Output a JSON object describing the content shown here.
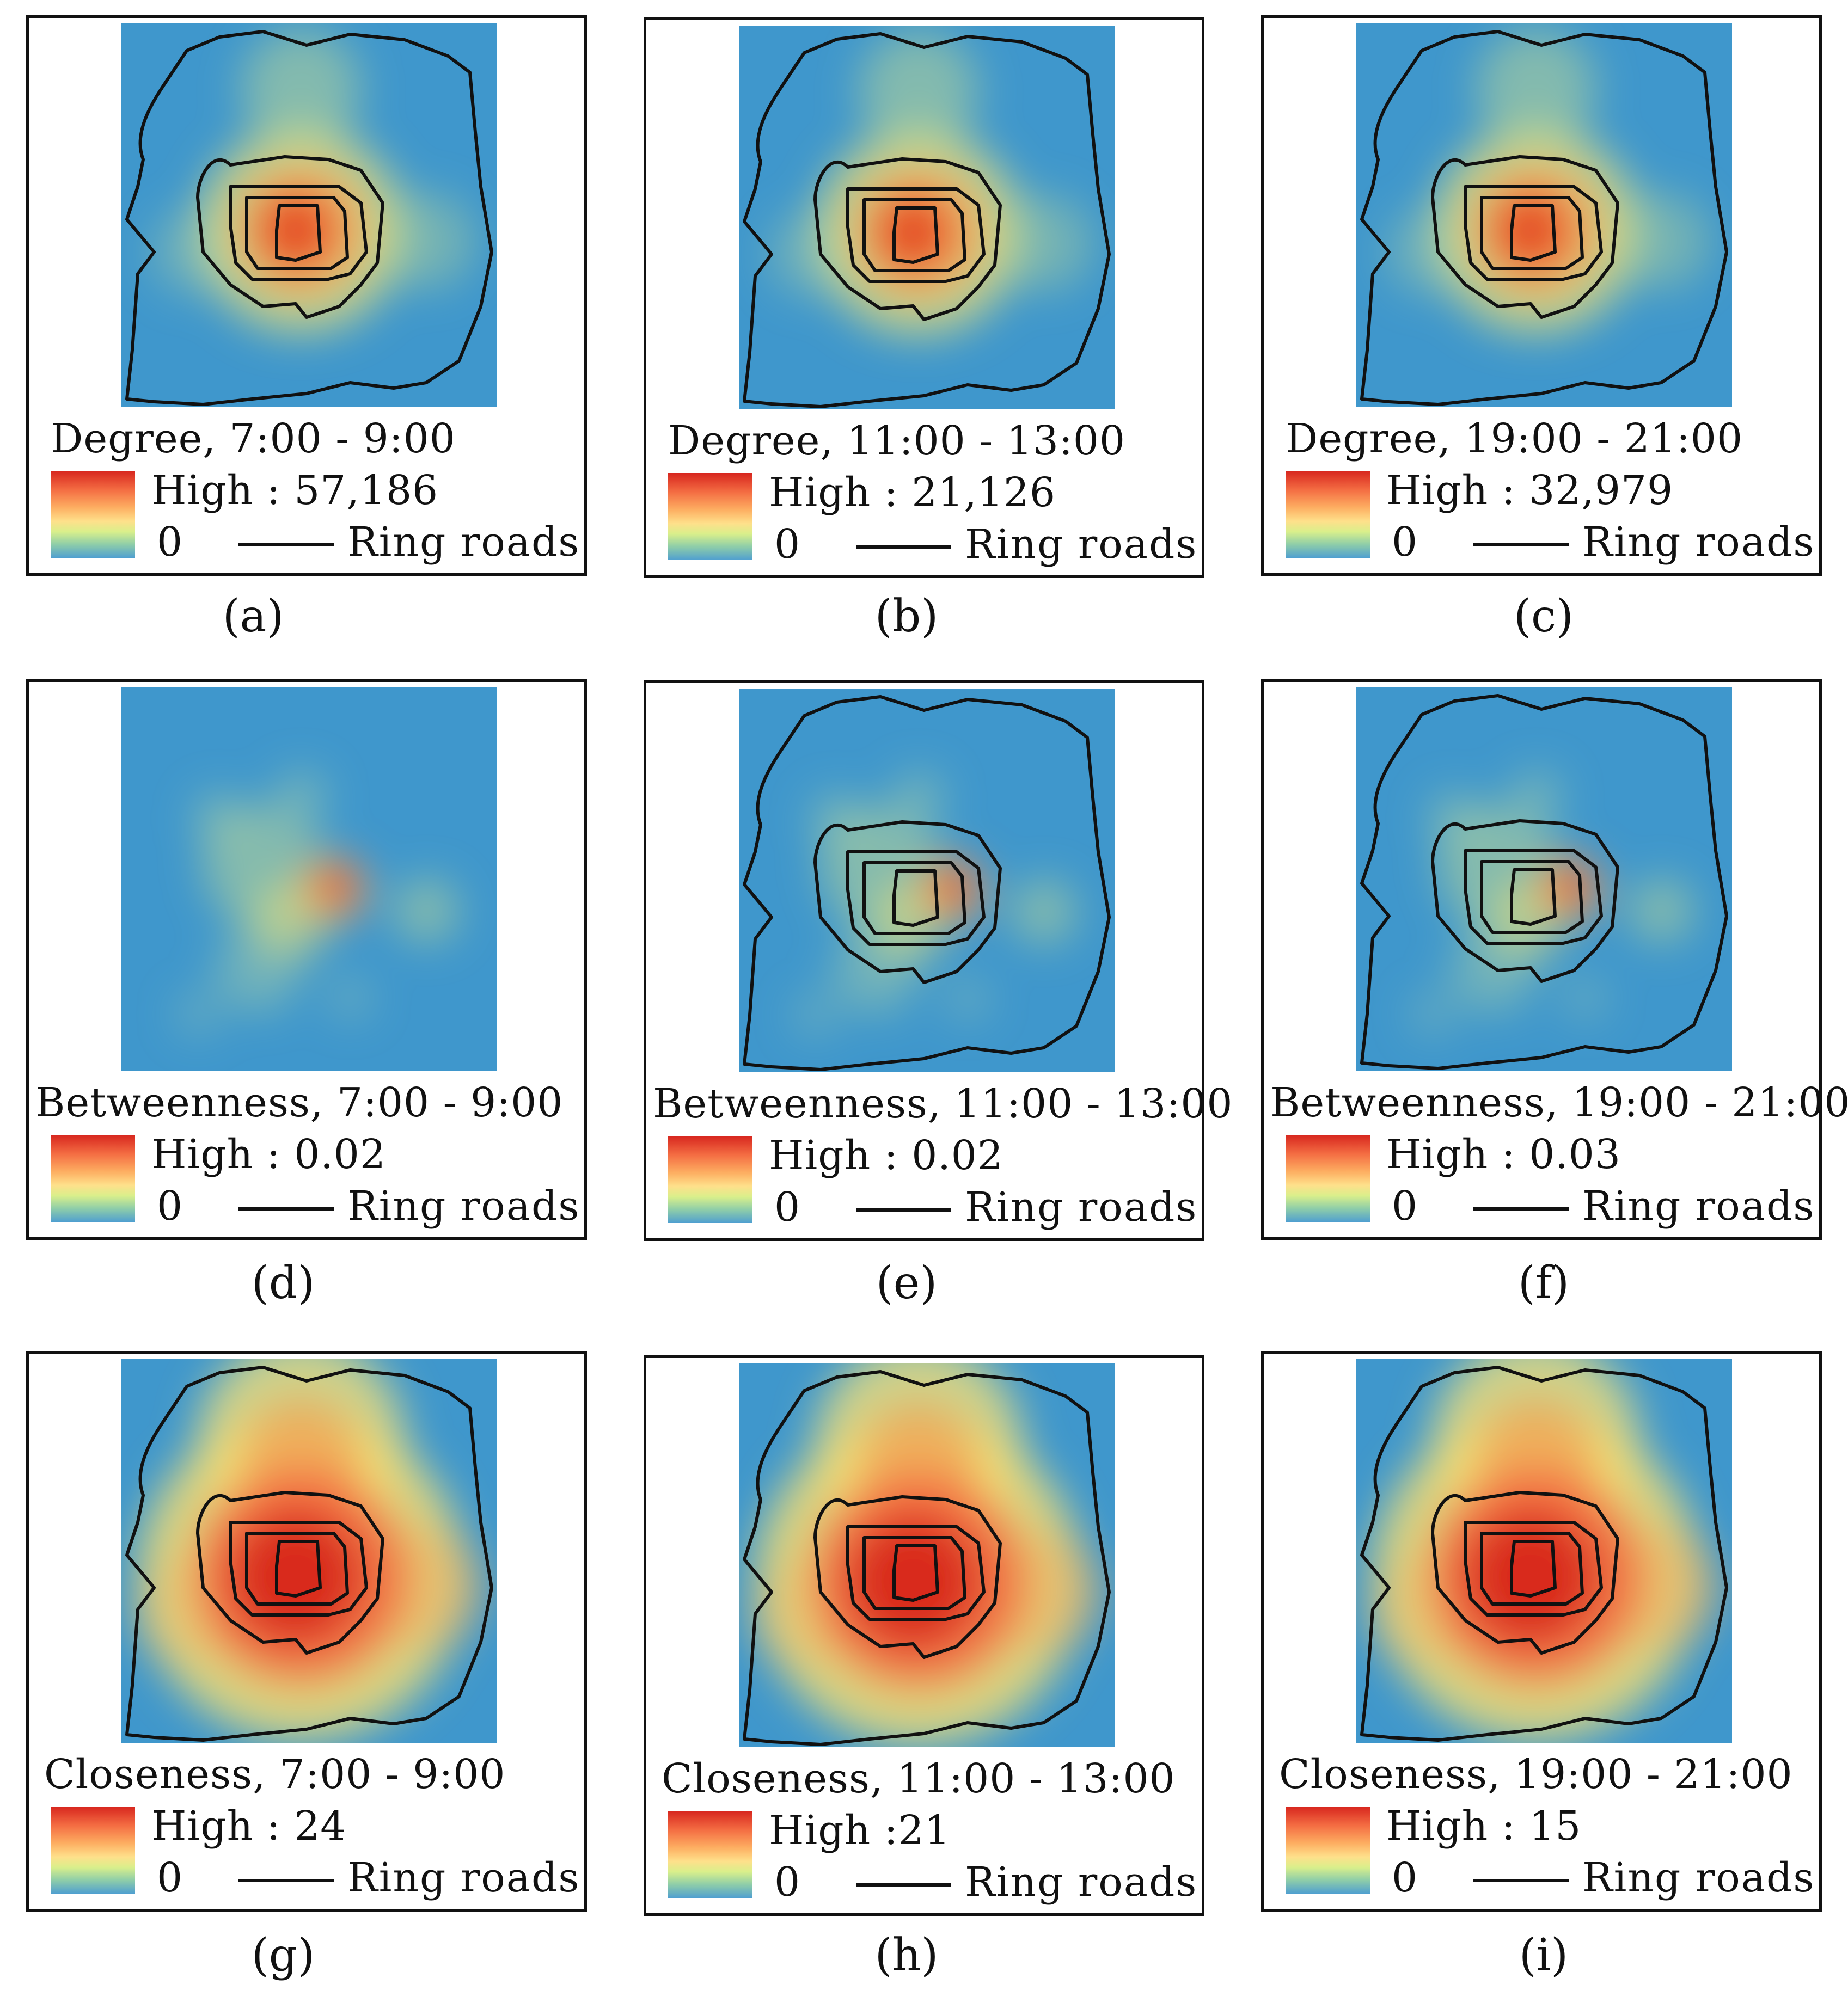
{
  "panels": [
    {
      "id": "a",
      "caption": "(a)",
      "title": "Degree, 7:00 - 9:00",
      "high_label": "High : 57,186",
      "zero_label": "0",
      "legend_line_label": "Ring roads",
      "layer": "degree",
      "show_rings": true
    },
    {
      "id": "b",
      "caption": "(b)",
      "title": "Degree, 11:00 - 13:00",
      "high_label": "High : 21,126",
      "zero_label": "0",
      "legend_line_label": "Ring roads",
      "layer": "degree",
      "show_rings": true
    },
    {
      "id": "c",
      "caption": "(c)",
      "title": "Degree, 19:00 - 21:00",
      "high_label": "High : 32,979",
      "zero_label": "0",
      "legend_line_label": "Ring roads",
      "layer": "degree",
      "show_rings": true
    },
    {
      "id": "d",
      "caption": "(d)",
      "title": "Betweenness, 7:00 - 9:00",
      "high_label": "High : 0.02",
      "zero_label": "0",
      "legend_line_label": "Ring roads",
      "layer": "betweenness",
      "show_rings": false
    },
    {
      "id": "e",
      "caption": "(e)",
      "title": "Betweenness, 11:00 - 13:00",
      "high_label": "High : 0.02",
      "zero_label": "0",
      "legend_line_label": "Ring roads",
      "layer": "betweenness",
      "show_rings": true
    },
    {
      "id": "f",
      "caption": "(f)",
      "title": "Betweenness, 19:00 - 21:00",
      "high_label": "High : 0.03",
      "zero_label": "0",
      "legend_line_label": "Ring roads",
      "layer": "betweenness",
      "show_rings": true
    },
    {
      "id": "g",
      "caption": "(g)",
      "title": "Closeness, 7:00 - 9:00",
      "high_label": "High : 24",
      "zero_label": "0",
      "legend_line_label": "Ring roads",
      "layer": "closeness",
      "show_rings": true
    },
    {
      "id": "h",
      "caption": "(h)",
      "title": "Closeness, 11:00 - 13:00",
      "high_label": "High :21",
      "zero_label": "0",
      "legend_line_label": "Ring roads",
      "layer": "closeness",
      "show_rings": true
    },
    {
      "id": "i",
      "caption": "(i)",
      "title": "Closeness, 19:00 - 21:00",
      "high_label": "High : 15",
      "zero_label": "0",
      "legend_line_label": "Ring roads",
      "layer": "closeness",
      "show_rings": true
    }
  ],
  "colors": {
    "background_blue": "#3f97cc",
    "high_red": "#d7261e",
    "ring_roads": "#111111"
  }
}
